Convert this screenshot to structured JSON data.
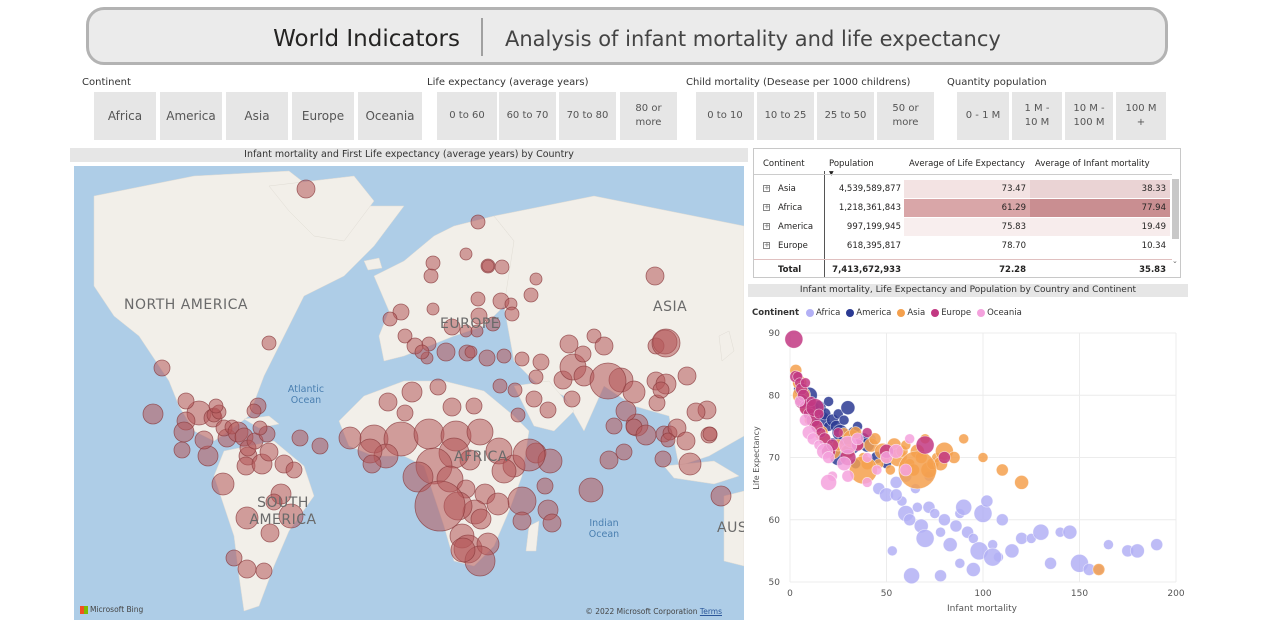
{
  "header": {
    "title": "World Indicators",
    "subtitle": "Analysis of infant mortality and life expectancy"
  },
  "slicers": {
    "continent": {
      "title": "Continent",
      "options": [
        "Africa",
        "America",
        "Asia",
        "Europe",
        "Oceania"
      ]
    },
    "life_expectancy": {
      "title": "Life expectancy (average years)",
      "options": [
        "0 to 60",
        "60 to 70",
        "70 to 80",
        "80 or more"
      ]
    },
    "child_mortality": {
      "title": "Child mortality (Desease per 1000 childrens)",
      "options": [
        "0 to 10",
        "10 to 25",
        "25 to 50",
        "50 or more"
      ]
    },
    "population": {
      "title": "Quantity population",
      "options": [
        "0 - 1 M",
        "1 M - 10 M",
        "10 M - 100 M",
        "100 M +"
      ]
    }
  },
  "map": {
    "title": "Infant mortality and First Life expectancy (average years) by Country",
    "labels": {
      "north_america": "NORTH AMERICA",
      "south_america": "SOUTH AMERICA",
      "europe": "EUROPE",
      "asia": "ASIA",
      "africa": "AFRICA",
      "australia": "AUS",
      "atlantic": "Atlantic Ocean",
      "indian": "Indian Ocean"
    },
    "bing": "Microsoft Bing",
    "copyright": "© 2022 Microsoft Corporation",
    "terms": "Terms",
    "bubble_color": "#b5575a",
    "land_color": "#f2efe9",
    "water_color": "#aecde7"
  },
  "table": {
    "headers": [
      "Continent",
      "Population",
      "Average of Life Expectancy",
      "Average of Infant mortality"
    ],
    "rows": [
      {
        "continent": "Asia",
        "population": "4,539,589,877",
        "life": "73.47",
        "infant": "38.33"
      },
      {
        "continent": "Africa",
        "population": "1,218,361,843",
        "life": "61.29",
        "infant": "77.94"
      },
      {
        "continent": "America",
        "population": "997,199,945",
        "life": "75.83",
        "infant": "19.49"
      },
      {
        "continent": "Europe",
        "population": "618,395,817",
        "life": "78.70",
        "infant": "10.34"
      }
    ],
    "total": {
      "label": "Total",
      "population": "7,413,672,933",
      "life": "72.28",
      "infant": "35.83"
    },
    "expand_icon": "+"
  },
  "scatter_title": "Infant mortality, Life Expectancy and Population by Country and Continent",
  "chart_data": {
    "type": "scatter",
    "title": "Infant mortality, Life Expectancy and Population by Country and Continent",
    "xlabel": "Infant mortality",
    "ylabel": "Life Expectancy",
    "xlim": [
      0,
      200
    ],
    "ylim": [
      50,
      90
    ],
    "xticks": [
      0,
      50,
      100,
      150,
      200
    ],
    "yticks": [
      50,
      60,
      70,
      80,
      90
    ],
    "legend_title": "Continent",
    "legend_position": "top-left",
    "grid": true,
    "series": [
      {
        "name": "Africa",
        "color": "#b3b0f5",
        "points": [
          [
            42,
            73
          ],
          [
            46,
            65
          ],
          [
            50,
            64
          ],
          [
            55,
            66
          ],
          [
            58,
            63
          ],
          [
            60,
            61
          ],
          [
            62,
            60
          ],
          [
            66,
            62
          ],
          [
            68,
            59
          ],
          [
            70,
            57
          ],
          [
            72,
            62
          ],
          [
            75,
            61
          ],
          [
            78,
            58
          ],
          [
            80,
            60
          ],
          [
            83,
            56
          ],
          [
            86,
            59
          ],
          [
            88,
            61
          ],
          [
            90,
            62
          ],
          [
            92,
            58
          ],
          [
            95,
            57
          ],
          [
            98,
            55
          ],
          [
            100,
            61
          ],
          [
            102,
            63
          ],
          [
            105,
            56
          ],
          [
            108,
            54
          ],
          [
            110,
            60
          ],
          [
            115,
            55
          ],
          [
            120,
            57
          ],
          [
            125,
            57
          ],
          [
            130,
            58
          ],
          [
            135,
            53
          ],
          [
            140,
            58
          ],
          [
            145,
            58
          ],
          [
            150,
            53
          ],
          [
            155,
            52
          ],
          [
            160,
            52
          ],
          [
            165,
            56
          ],
          [
            175,
            55
          ],
          [
            180,
            55
          ],
          [
            190,
            56
          ],
          [
            53,
            55
          ],
          [
            63,
            51
          ],
          [
            78,
            51
          ],
          [
            88,
            53
          ],
          [
            95,
            52
          ],
          [
            105,
            54
          ],
          [
            55,
            64
          ],
          [
            65,
            65
          ],
          [
            72,
            67
          ],
          [
            60,
            67
          ]
        ]
      },
      {
        "name": "America",
        "color": "#2b3a93",
        "points": [
          [
            5,
            81
          ],
          [
            8,
            79
          ],
          [
            10,
            80
          ],
          [
            12,
            78
          ],
          [
            13,
            77
          ],
          [
            15,
            78
          ],
          [
            16,
            76
          ],
          [
            18,
            77
          ],
          [
            20,
            75
          ],
          [
            20,
            79
          ],
          [
            22,
            76
          ],
          [
            22,
            72
          ],
          [
            24,
            75
          ],
          [
            25,
            77
          ],
          [
            26,
            74
          ],
          [
            28,
            73
          ],
          [
            28,
            76
          ],
          [
            30,
            78
          ],
          [
            32,
            72
          ],
          [
            33,
            74
          ],
          [
            34,
            69
          ],
          [
            35,
            75
          ],
          [
            38,
            73
          ],
          [
            40,
            72
          ],
          [
            45,
            70
          ],
          [
            50,
            69
          ],
          [
            25,
            70
          ],
          [
            30,
            71
          ]
        ]
      },
      {
        "name": "Asia",
        "color": "#f4a04d",
        "points": [
          [
            3,
            84
          ],
          [
            4,
            82
          ],
          [
            5,
            82
          ],
          [
            6,
            80
          ],
          [
            8,
            78
          ],
          [
            10,
            76
          ],
          [
            12,
            77
          ],
          [
            14,
            75
          ],
          [
            16,
            74
          ],
          [
            18,
            73
          ],
          [
            20,
            72
          ],
          [
            22,
            71
          ],
          [
            25,
            72
          ],
          [
            28,
            74
          ],
          [
            30,
            71
          ],
          [
            32,
            73
          ],
          [
            34,
            74
          ],
          [
            36,
            72
          ],
          [
            38,
            70
          ],
          [
            40,
            69
          ],
          [
            42,
            72
          ],
          [
            44,
            73
          ],
          [
            46,
            69
          ],
          [
            48,
            71
          ],
          [
            50,
            70
          ],
          [
            52,
            68
          ],
          [
            54,
            72
          ],
          [
            56,
            70
          ],
          [
            58,
            71
          ],
          [
            60,
            72
          ],
          [
            62,
            69
          ],
          [
            64,
            68
          ],
          [
            66,
            71
          ],
          [
            68,
            70
          ],
          [
            70,
            73
          ],
          [
            72,
            68
          ],
          [
            74,
            69
          ],
          [
            76,
            70
          ],
          [
            78,
            69
          ],
          [
            80,
            71
          ],
          [
            85,
            70
          ],
          [
            90,
            73
          ],
          [
            100,
            70
          ],
          [
            110,
            68
          ],
          [
            120,
            66
          ],
          [
            160,
            52
          ],
          [
            66,
            68
          ],
          [
            38,
            68
          ]
        ]
      },
      {
        "name": "Europe",
        "color": "#c23882",
        "points": [
          [
            2,
            89
          ],
          [
            3,
            83
          ],
          [
            4,
            83
          ],
          [
            5,
            82
          ],
          [
            6,
            81
          ],
          [
            6,
            79
          ],
          [
            7,
            80
          ],
          [
            8,
            82
          ],
          [
            9,
            78
          ],
          [
            10,
            77
          ],
          [
            11,
            79
          ],
          [
            12,
            76
          ],
          [
            13,
            78
          ],
          [
            14,
            75
          ],
          [
            15,
            77
          ],
          [
            16,
            74
          ],
          [
            18,
            73
          ],
          [
            20,
            71
          ],
          [
            22,
            72
          ],
          [
            25,
            74
          ],
          [
            30,
            70
          ],
          [
            35,
            72
          ],
          [
            40,
            74
          ],
          [
            50,
            71
          ],
          [
            70,
            72
          ],
          [
            80,
            70
          ]
        ]
      },
      {
        "name": "Oceania",
        "color": "#f4a2dd",
        "points": [
          [
            5,
            79
          ],
          [
            8,
            76
          ],
          [
            10,
            74
          ],
          [
            12,
            73
          ],
          [
            15,
            72
          ],
          [
            18,
            71
          ],
          [
            20,
            70
          ],
          [
            22,
            67
          ],
          [
            28,
            69
          ],
          [
            30,
            72
          ],
          [
            35,
            73
          ],
          [
            40,
            70
          ],
          [
            45,
            68
          ],
          [
            50,
            70
          ],
          [
            55,
            71
          ],
          [
            60,
            68
          ],
          [
            62,
            73
          ],
          [
            20,
            66
          ],
          [
            30,
            67
          ],
          [
            40,
            66
          ]
        ]
      }
    ]
  }
}
